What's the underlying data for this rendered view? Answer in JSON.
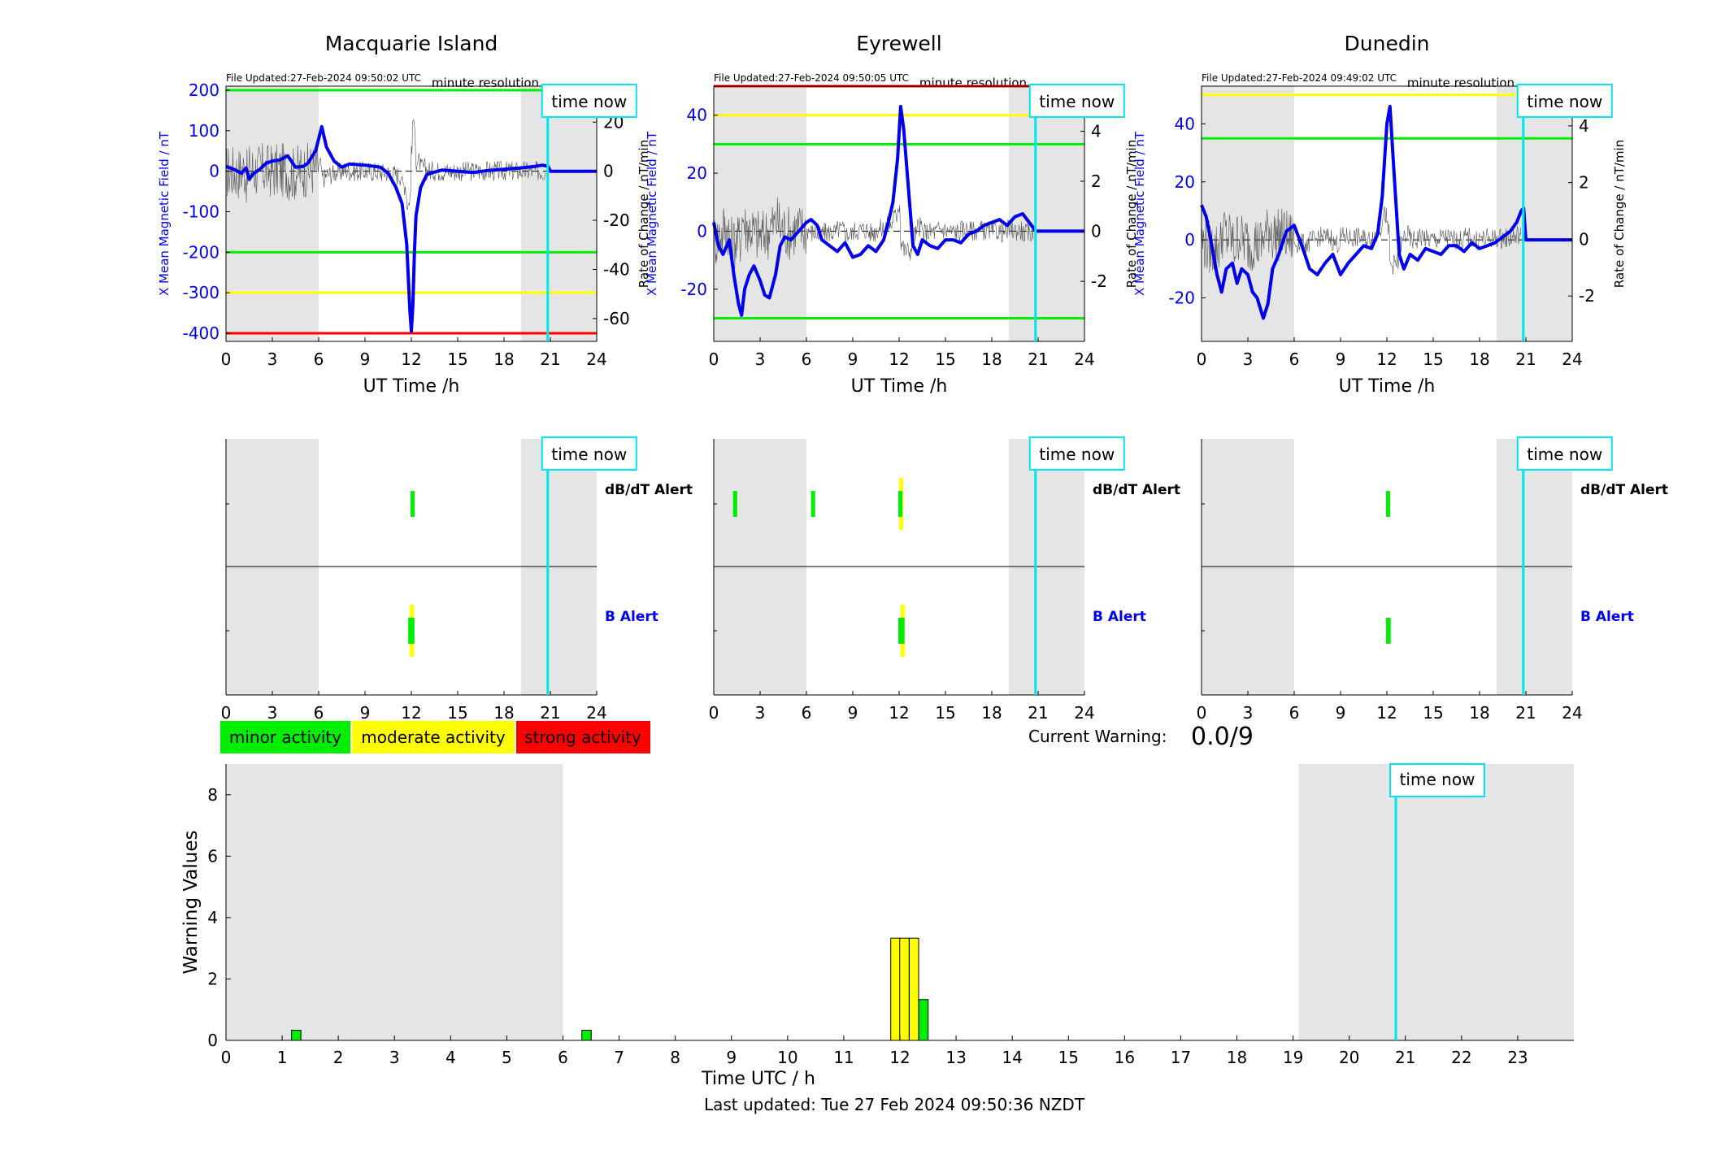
{
  "tick_labels": {
    "hours_3": [
      "0",
      "3",
      "6",
      "9",
      "12",
      "15",
      "18",
      "21",
      "24"
    ],
    "hours_1": [
      "0",
      "1",
      "2",
      "3",
      "4",
      "5",
      "6",
      "7",
      "8",
      "9",
      "10",
      "11",
      "12",
      "13",
      "14",
      "15",
      "16",
      "17",
      "18",
      "19",
      "20",
      "21",
      "22",
      "23"
    ]
  },
  "common": {
    "xlabel": "UT Time /h",
    "y_left_label": "X Mean Magnetic Field / nT",
    "y_right_label": "Rate of Change / nT/min",
    "resolution": "minute resolution",
    "time_now_label": "time now",
    "dbdt_alert_label": "dB/dT Alert",
    "b_alert_label": "B Alert",
    "time_now_h": 20.83,
    "night_shading_h": [
      [
        0,
        6
      ],
      [
        19.1,
        24
      ]
    ]
  },
  "legend": {
    "minor": "minor activity",
    "moderate": "moderate activity",
    "strong": "strong activity",
    "colors": {
      "minor": "#00ee00",
      "moderate": "#ffff00",
      "strong": "#ff0000"
    }
  },
  "current_warning": {
    "label": "Current Warning:",
    "value": "0.0/9"
  },
  "footer": {
    "last_updated": "Last updated: Tue 27 Feb 2024 09:50:36 NZDT"
  },
  "chart_data": [
    {
      "type": "line",
      "title": "Macquarie Island",
      "file_updated": "File Updated:27-Feb-2024 09:50:02 UTC",
      "xlabel": "UT Time /h",
      "ylabel": "X Mean Magnetic Field / nT",
      "ylabel_right": "Rate of Change / nT/min",
      "xlim": [
        0,
        24
      ],
      "ylim": [
        -420,
        210
      ],
      "yticks": [
        -400,
        -300,
        -200,
        -100,
        0,
        100,
        200
      ],
      "ylim_right": [
        -69.3,
        34.65
      ],
      "yticks_right": [
        -60,
        -40,
        -20,
        0,
        20
      ],
      "thresholds": [
        {
          "value": 200,
          "color": "#00ee00"
        },
        {
          "value": -200,
          "color": "#00ee00"
        },
        {
          "value": -300,
          "color": "#ffff00"
        },
        {
          "value": -400,
          "color": "#ff0000"
        }
      ],
      "series": [
        {
          "x": [
            0,
            0.5,
            1,
            1.3,
            1.5,
            1.8,
            2.2,
            2.6,
            3,
            3.5,
            4,
            4.5,
            5,
            5.3,
            5.8,
            6.2,
            6.5,
            7,
            7.5,
            8,
            9,
            10,
            10.5,
            11,
            11.4,
            11.7,
            11.9,
            12,
            12.1,
            12.2,
            12.3,
            12.6,
            13,
            13.5,
            14,
            15,
            16,
            17,
            18,
            19,
            20,
            20.5,
            20.85,
            21,
            24
          ],
          "y": [
            12,
            5,
            -5,
            8,
            -20,
            -5,
            5,
            20,
            25,
            28,
            38,
            10,
            12,
            20,
            50,
            110,
            60,
            25,
            10,
            18,
            15,
            10,
            -5,
            -40,
            -80,
            -180,
            -340,
            -395,
            -330,
            -200,
            -110,
            -40,
            -8,
            -2,
            3,
            0,
            -3,
            2,
            5,
            8,
            12,
            15,
            12,
            0,
            0
          ]
        }
      ]
    },
    {
      "type": "line",
      "title": "Eyrewell",
      "file_updated": "File Updated:27-Feb-2024 09:50:05 UTC",
      "xlabel": "UT Time /h",
      "ylabel": "X Mean Magnetic Field / nT",
      "ylabel_right": "Rate of Change / nT/min",
      "xlim": [
        0,
        24
      ],
      "ylim": [
        -38,
        50
      ],
      "yticks": [
        -20,
        0,
        20,
        40
      ],
      "ylim_right": [
        -4.4,
        5.8
      ],
      "yticks_right": [
        -2,
        0,
        2,
        4
      ],
      "thresholds": [
        {
          "value": 50,
          "color": "#ff0000"
        },
        {
          "value": 40,
          "color": "#ffff00"
        },
        {
          "value": 30,
          "color": "#00ee00"
        },
        {
          "value": -30,
          "color": "#00ee00"
        }
      ],
      "series": [
        {
          "x": [
            0,
            0.3,
            0.6,
            1,
            1.3,
            1.6,
            1.8,
            2,
            2.3,
            2.6,
            3,
            3.3,
            3.6,
            4,
            4.3,
            4.6,
            5,
            5.5,
            6,
            6.3,
            6.7,
            7,
            7.5,
            8,
            8.5,
            9,
            9.5,
            10,
            10.5,
            11,
            11.3,
            11.6,
            11.9,
            12.1,
            12.3,
            12.6,
            12.9,
            13.2,
            13.5,
            14,
            14.5,
            15,
            15.5,
            16,
            16.5,
            17,
            17.5,
            18,
            18.5,
            19,
            19.5,
            20,
            20.85,
            21,
            24
          ],
          "y": [
            3,
            -5,
            -8,
            -3,
            -15,
            -25,
            -29,
            -20,
            -15,
            -12,
            -17,
            -22,
            -23,
            -15,
            -5,
            -2,
            -3,
            0,
            3,
            4,
            2,
            -3,
            -5,
            -7,
            -4,
            -9,
            -8,
            -5,
            -7,
            -3,
            3,
            10,
            25,
            43,
            35,
            15,
            -5,
            -8,
            -3,
            -5,
            -6,
            -3,
            -3,
            -4,
            -1,
            0,
            2,
            3,
            4,
            2,
            5,
            6,
            0,
            0,
            0
          ]
        }
      ]
    },
    {
      "type": "line",
      "title": "Dunedin",
      "file_updated": "File Updated:27-Feb-2024 09:49:02 UTC",
      "xlabel": "UT Time /h",
      "ylabel": "X Mean Magnetic Field / nT",
      "ylabel_right": "Rate of Change / nT/min",
      "xlim": [
        0,
        24
      ],
      "ylim": [
        -35,
        53
      ],
      "yticks": [
        -20,
        0,
        20,
        40
      ],
      "ylim_right": [
        -3.6,
        5.4
      ],
      "yticks_right": [
        -2,
        0,
        2,
        4
      ],
      "thresholds": [
        {
          "value": 50,
          "color": "#ffff00"
        },
        {
          "value": 35,
          "color": "#00ee00"
        }
      ],
      "series": [
        {
          "x": [
            0,
            0.3,
            0.6,
            1,
            1.3,
            1.6,
            2,
            2.3,
            2.6,
            3,
            3.3,
            3.6,
            4,
            4.3,
            4.6,
            5,
            5.5,
            6,
            6.5,
            7,
            7.5,
            8,
            8.5,
            9,
            9.5,
            10,
            10.5,
            11,
            11.4,
            11.7,
            12,
            12.2,
            12.5,
            12.8,
            13.1,
            13.5,
            14,
            14.5,
            15,
            15.5,
            16,
            16.5,
            17,
            17.5,
            18,
            18.5,
            19,
            19.5,
            20,
            20.4,
            20.7,
            20.85,
            21,
            24
          ],
          "y": [
            12,
            8,
            0,
            -12,
            -18,
            -10,
            -8,
            -15,
            -10,
            -12,
            -18,
            -20,
            -27,
            -22,
            -10,
            -5,
            3,
            5,
            -2,
            -10,
            -12,
            -8,
            -5,
            -12,
            -8,
            -5,
            -2,
            -3,
            2,
            15,
            40,
            46,
            20,
            -5,
            -10,
            -5,
            -7,
            -3,
            -4,
            -5,
            -2,
            -2,
            -4,
            -1,
            -3,
            -2,
            -1,
            1,
            3,
            6,
            10,
            11,
            0,
            0
          ]
        }
      ]
    },
    {
      "type": "bar",
      "xlabel": "Time UTC / h",
      "ylabel": "Warning Values",
      "xlim": [
        0,
        24
      ],
      "ylim": [
        0,
        9
      ],
      "yticks": [
        0,
        2,
        4,
        6,
        8
      ],
      "bars": [
        {
          "x": 1.25,
          "value": 0.33,
          "level": "minor"
        },
        {
          "x": 6.42,
          "value": 0.33,
          "level": "minor"
        },
        {
          "x": 11.92,
          "value": 3.33,
          "level": "moderate"
        },
        {
          "x": 12.08,
          "value": 3.33,
          "level": "moderate"
        },
        {
          "x": 12.25,
          "value": 3.33,
          "level": "moderate"
        },
        {
          "x": 12.42,
          "value": 1.33,
          "level": "minor"
        }
      ]
    }
  ],
  "alerts": [
    {
      "station": "Macquarie Island",
      "dbdt": [
        {
          "start": 11.95,
          "end": 12.05,
          "level": "minor"
        }
      ],
      "b": [
        {
          "start": 11.9,
          "end": 12.1,
          "level": "moderate"
        },
        {
          "start": 11.8,
          "end": 12.2,
          "level": "minor"
        }
      ]
    },
    {
      "station": "Eyrewell",
      "dbdt": [
        {
          "start": 1.25,
          "end": 1.35,
          "level": "minor"
        },
        {
          "start": 6.3,
          "end": 6.4,
          "level": "minor"
        },
        {
          "start": 12.0,
          "end": 12.1,
          "level": "moderate"
        },
        {
          "start": 11.95,
          "end": 12.15,
          "level": "minor"
        }
      ],
      "b": [
        {
          "start": 12.1,
          "end": 12.2,
          "level": "moderate"
        },
        {
          "start": 11.95,
          "end": 12.35,
          "level": "minor"
        }
      ]
    },
    {
      "station": "Dunedin",
      "dbdt": [
        {
          "start": 11.95,
          "end": 12.05,
          "level": "minor"
        }
      ],
      "b": [
        {
          "start": 11.95,
          "end": 12.25,
          "level": "minor"
        }
      ]
    }
  ]
}
